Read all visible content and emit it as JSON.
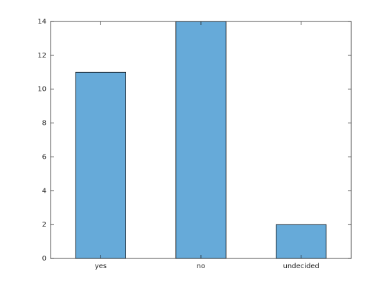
{
  "chart_data": {
    "type": "bar",
    "categories": [
      "yes",
      "no",
      "undecided"
    ],
    "values": [
      11,
      14,
      2
    ],
    "color": "#66aad9",
    "ylim": [
      0,
      14
    ],
    "yticks": [
      0,
      2,
      4,
      6,
      8,
      10,
      12,
      14
    ],
    "grid": false
  }
}
